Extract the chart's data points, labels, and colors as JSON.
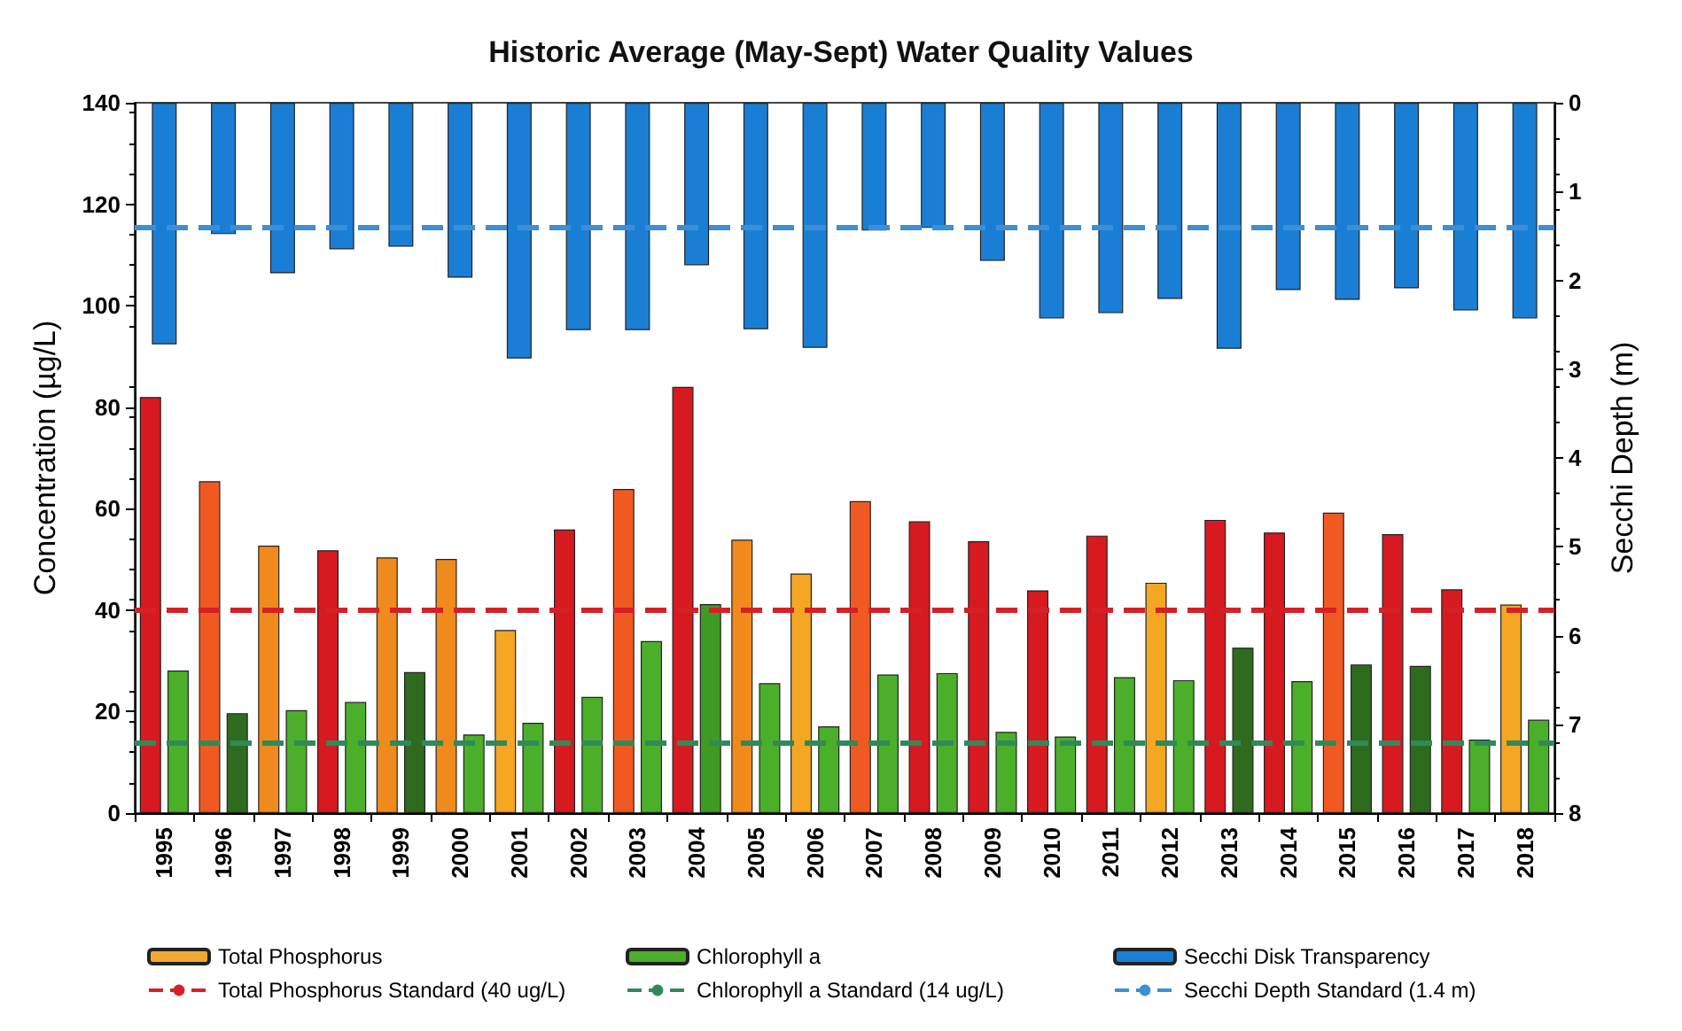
{
  "chart_data": {
    "type": "bar",
    "title": "Historic Average (May-Sept) Water Quality Values",
    "ylabel": "Concentration (µg/L)",
    "y2label": "Secchi Depth (m)",
    "categories": [
      "1995",
      "1996",
      "1997",
      "1998",
      "1999",
      "2000",
      "2001",
      "2002",
      "2003",
      "2004",
      "2005",
      "2006",
      "2007",
      "2008",
      "2009",
      "2010",
      "2011",
      "2012",
      "2013",
      "2014",
      "2015",
      "2016",
      "2017",
      "2018"
    ],
    "series": [
      {
        "name": "Total Phosphorus",
        "color": "#f0a830",
        "values": [
          82,
          65.4,
          52.7,
          51.8,
          50.4,
          50.1,
          36.1,
          55.9,
          63.9,
          84,
          53.9,
          47.2,
          61.5,
          57.5,
          53.6,
          43.9,
          54.7,
          45.4,
          57.8,
          55.3,
          59.2,
          55,
          44.1,
          41.1
        ],
        "colors": [
          "#d71920",
          "#f05a22",
          "#f08a1c",
          "#d71920",
          "#f08a1c",
          "#f08a1c",
          "#f5a623",
          "#d71920",
          "#f05a22",
          "#d71920",
          "#f08a1c",
          "#f5a623",
          "#f05a22",
          "#d71920",
          "#d71920",
          "#d71920",
          "#d71920",
          "#f5a623",
          "#d71920",
          "#d71920",
          "#f05a22",
          "#d71920",
          "#d71920",
          "#f5a623"
        ]
      },
      {
        "name": "Chlorophyll a",
        "color": "#4caf2a",
        "values": [
          28.1,
          19.7,
          20.3,
          21.9,
          27.8,
          15.5,
          17.8,
          22.9,
          33.9,
          41.2,
          25.6,
          17.1,
          27.3,
          27.6,
          16,
          15.1,
          26.8,
          26.2,
          32.6,
          26,
          29.3,
          29,
          14.5,
          18.4
        ],
        "colors": [
          "#4caf2a",
          "#2e6b1e",
          "#4caf2a",
          "#4caf2a",
          "#2e6b1e",
          "#4caf2a",
          "#4caf2a",
          "#4caf2a",
          "#4caf2a",
          "#3f9a24",
          "#4caf2a",
          "#4caf2a",
          "#4caf2a",
          "#4caf2a",
          "#4caf2a",
          "#4caf2a",
          "#4caf2a",
          "#4caf2a",
          "#2e6b1e",
          "#4caf2a",
          "#2e6b1e",
          "#2e6b1e",
          "#4caf2a",
          "#4caf2a"
        ]
      },
      {
        "name": "Secchi Disk Transparency",
        "color": "#1a7fd4",
        "axis": "y2",
        "values": [
          2.72,
          1.48,
          1.92,
          1.65,
          1.62,
          1.97,
          2.88,
          2.56,
          2.56,
          1.83,
          2.55,
          2.76,
          1.44,
          1.41,
          1.78,
          2.43,
          2.37,
          2.21,
          2.77,
          2.11,
          2.22,
          2.09,
          2.34,
          2.43
        ]
      }
    ],
    "ylim": [
      0,
      140
    ],
    "yticks": [
      0,
      20,
      40,
      60,
      80,
      100,
      120,
      140
    ],
    "y2lim": [
      8,
      0
    ],
    "y2ticks": [
      0,
      1,
      2,
      3,
      4,
      5,
      6,
      7,
      8
    ],
    "ref_lines": [
      {
        "axis": "y",
        "value": 40,
        "label": "Total Phosphorus Standard (40 ug/L)",
        "color": "#d62027",
        "line_style": "dashed"
      },
      {
        "axis": "y",
        "value": 14,
        "label": "Chlorophyll a Standard (14 ug/L)",
        "color": "#2f8a5a",
        "line_style": "dashed"
      },
      {
        "axis": "y2",
        "value": 1.4,
        "label": "Secchi Depth Standard (1.4 m)",
        "color": "#3a8fd6",
        "line_style": "dashed"
      }
    ],
    "grid": false,
    "legend": "bottom"
  }
}
